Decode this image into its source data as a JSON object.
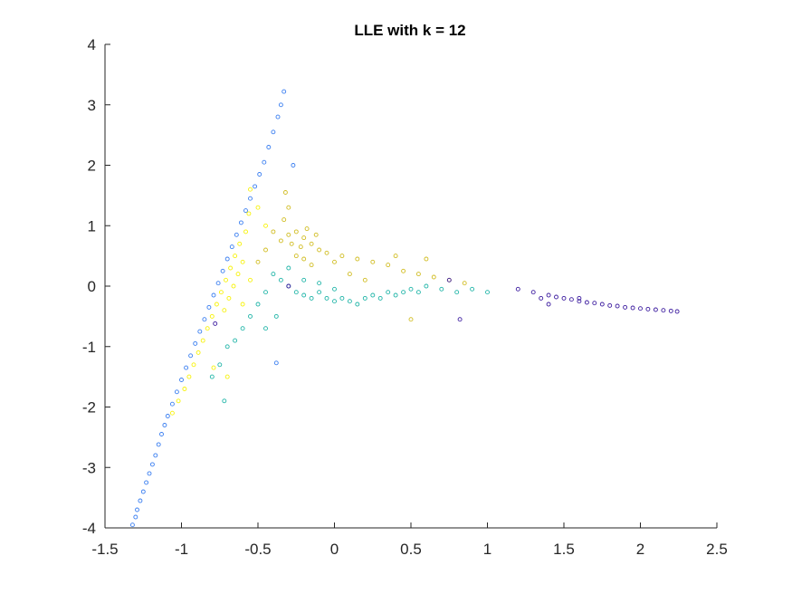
{
  "chart_data": {
    "type": "scatter",
    "title": "LLE with k = 12",
    "xlabel": "",
    "ylabel": "",
    "xlim": [
      -1.5,
      2.5
    ],
    "ylim": [
      -4,
      4
    ],
    "xticks": [
      "-1.5",
      "-1",
      "-0.5",
      "0",
      "0.5",
      "1",
      "1.5",
      "2",
      "2.5"
    ],
    "yticks": [
      "-4",
      "-3",
      "-2",
      "-1",
      "0",
      "1",
      "2",
      "3",
      "4"
    ],
    "grid": false,
    "legend": "none",
    "series": [
      {
        "color": "#3b7ff0",
        "marker": "circle",
        "points": [
          [
            -1.32,
            -3.95
          ],
          [
            -1.3,
            -3.82
          ],
          [
            -1.29,
            -3.7
          ],
          [
            -1.27,
            -3.55
          ],
          [
            -1.25,
            -3.4
          ],
          [
            -1.23,
            -3.25
          ],
          [
            -1.21,
            -3.1
          ],
          [
            -1.19,
            -2.95
          ],
          [
            -1.17,
            -2.8
          ],
          [
            -1.15,
            -2.62
          ],
          [
            -1.13,
            -2.45
          ],
          [
            -1.11,
            -2.3
          ],
          [
            -1.09,
            -2.15
          ],
          [
            -1.06,
            -1.95
          ],
          [
            -1.03,
            -1.75
          ],
          [
            -1.0,
            -1.55
          ],
          [
            -0.97,
            -1.35
          ],
          [
            -0.94,
            -1.15
          ],
          [
            -0.91,
            -0.95
          ],
          [
            -0.88,
            -0.75
          ],
          [
            -0.85,
            -0.55
          ],
          [
            -0.82,
            -0.35
          ],
          [
            -0.79,
            -0.15
          ],
          [
            -0.76,
            0.05
          ],
          [
            -0.73,
            0.25
          ],
          [
            -0.7,
            0.45
          ],
          [
            -0.67,
            0.65
          ],
          [
            -0.64,
            0.85
          ],
          [
            -0.61,
            1.05
          ],
          [
            -0.58,
            1.25
          ],
          [
            -0.55,
            1.45
          ],
          [
            -0.52,
            1.65
          ],
          [
            -0.49,
            1.85
          ],
          [
            -0.46,
            2.05
          ],
          [
            -0.43,
            2.3
          ],
          [
            -0.4,
            2.55
          ],
          [
            -0.37,
            2.8
          ],
          [
            -0.35,
            3.0
          ],
          [
            -0.33,
            3.22
          ],
          [
            -0.27,
            2.0
          ],
          [
            -0.38,
            -1.27
          ]
        ]
      },
      {
        "color": "#f7f20a",
        "marker": "circle",
        "points": [
          [
            -1.06,
            -2.1
          ],
          [
            -1.02,
            -1.9
          ],
          [
            -0.98,
            -1.7
          ],
          [
            -0.95,
            -1.5
          ],
          [
            -0.92,
            -1.3
          ],
          [
            -0.89,
            -1.1
          ],
          [
            -0.86,
            -0.9
          ],
          [
            -0.83,
            -0.7
          ],
          [
            -0.8,
            -0.5
          ],
          [
            -0.77,
            -0.3
          ],
          [
            -0.74,
            -0.1
          ],
          [
            -0.71,
            0.1
          ],
          [
            -0.68,
            0.3
          ],
          [
            -0.65,
            0.5
          ],
          [
            -0.62,
            0.7
          ],
          [
            -0.6,
            0.4
          ],
          [
            -0.63,
            0.2
          ],
          [
            -0.66,
            0.0
          ],
          [
            -0.69,
            -0.2
          ],
          [
            -0.72,
            -0.4
          ],
          [
            -0.58,
            0.9
          ],
          [
            -0.56,
            1.2
          ],
          [
            -0.55,
            1.6
          ],
          [
            -0.5,
            1.3
          ],
          [
            -0.45,
            1.0
          ],
          [
            -0.79,
            -1.35
          ],
          [
            -0.7,
            -1.5
          ],
          [
            -0.6,
            -0.3
          ],
          [
            -0.55,
            0.1
          ]
        ]
      },
      {
        "color": "#d1bd23",
        "marker": "circle",
        "points": [
          [
            -0.3,
            0.85
          ],
          [
            -0.25,
            0.9
          ],
          [
            -0.2,
            0.8
          ],
          [
            -0.15,
            0.7
          ],
          [
            -0.1,
            0.6
          ],
          [
            -0.22,
            0.65
          ],
          [
            -0.28,
            0.7
          ],
          [
            -0.18,
            0.95
          ],
          [
            -0.12,
            0.85
          ],
          [
            -0.05,
            0.55
          ],
          [
            -0.35,
            0.75
          ],
          [
            -0.4,
            0.9
          ],
          [
            -0.33,
            1.1
          ],
          [
            -0.3,
            1.3
          ],
          [
            -0.32,
            1.55
          ],
          [
            -0.45,
            0.6
          ],
          [
            -0.5,
            0.4
          ],
          [
            -0.2,
            0.45
          ],
          [
            0.0,
            0.4
          ],
          [
            0.05,
            0.5
          ],
          [
            0.15,
            0.45
          ],
          [
            0.25,
            0.4
          ],
          [
            0.35,
            0.35
          ],
          [
            0.45,
            0.25
          ],
          [
            0.55,
            0.2
          ],
          [
            0.65,
            0.15
          ],
          [
            0.75,
            0.1
          ],
          [
            0.85,
            0.05
          ],
          [
            0.6,
            0.45
          ],
          [
            0.4,
            0.5
          ],
          [
            -0.25,
            0.5
          ],
          [
            -0.15,
            0.35
          ],
          [
            0.1,
            0.2
          ],
          [
            0.2,
            0.1
          ],
          [
            0.5,
            -0.55
          ]
        ]
      },
      {
        "color": "#21b5a8",
        "marker": "circle",
        "points": [
          [
            -0.4,
            0.2
          ],
          [
            -0.35,
            0.1
          ],
          [
            -0.3,
            0.0
          ],
          [
            -0.25,
            -0.1
          ],
          [
            -0.2,
            -0.15
          ],
          [
            -0.15,
            -0.2
          ],
          [
            -0.1,
            -0.1
          ],
          [
            -0.05,
            -0.2
          ],
          [
            0.0,
            -0.25
          ],
          [
            0.05,
            -0.2
          ],
          [
            0.1,
            -0.25
          ],
          [
            0.15,
            -0.3
          ],
          [
            0.2,
            -0.2
          ],
          [
            0.25,
            -0.15
          ],
          [
            0.3,
            -0.2
          ],
          [
            0.35,
            -0.1
          ],
          [
            0.4,
            -0.15
          ],
          [
            0.45,
            -0.1
          ],
          [
            0.5,
            -0.05
          ],
          [
            0.55,
            -0.1
          ],
          [
            0.6,
            0.0
          ],
          [
            0.7,
            -0.05
          ],
          [
            0.8,
            -0.1
          ],
          [
            0.9,
            -0.05
          ],
          [
            1.0,
            -0.1
          ],
          [
            -0.45,
            -0.1
          ],
          [
            -0.5,
            -0.3
          ],
          [
            -0.55,
            -0.5
          ],
          [
            -0.6,
            -0.7
          ],
          [
            -0.65,
            -0.9
          ],
          [
            -0.7,
            -1.0
          ],
          [
            -0.75,
            -1.3
          ],
          [
            -0.8,
            -1.5
          ],
          [
            -0.72,
            -1.9
          ],
          [
            -0.3,
            0.3
          ],
          [
            -0.2,
            0.1
          ],
          [
            -0.1,
            0.05
          ],
          [
            0.0,
            -0.05
          ],
          [
            -0.38,
            -0.5
          ],
          [
            -0.45,
            -0.7
          ]
        ]
      },
      {
        "color": "#3e1ea0",
        "marker": "circle",
        "points": [
          [
            1.2,
            -0.05
          ],
          [
            1.3,
            -0.1
          ],
          [
            1.35,
            -0.2
          ],
          [
            1.4,
            -0.15
          ],
          [
            1.45,
            -0.18
          ],
          [
            1.5,
            -0.2
          ],
          [
            1.55,
            -0.22
          ],
          [
            1.6,
            -0.25
          ],
          [
            1.65,
            -0.27
          ],
          [
            1.7,
            -0.28
          ],
          [
            1.75,
            -0.3
          ],
          [
            1.8,
            -0.32
          ],
          [
            1.85,
            -0.33
          ],
          [
            1.9,
            -0.35
          ],
          [
            1.95,
            -0.36
          ],
          [
            2.0,
            -0.37
          ],
          [
            2.05,
            -0.38
          ],
          [
            2.1,
            -0.39
          ],
          [
            2.15,
            -0.4
          ],
          [
            2.2,
            -0.41
          ],
          [
            2.24,
            -0.42
          ],
          [
            1.4,
            -0.3
          ],
          [
            1.6,
            -0.2
          ],
          [
            0.82,
            -0.55
          ],
          [
            0.75,
            0.1
          ],
          [
            -0.3,
            0.0
          ],
          [
            -0.78,
            -0.62
          ]
        ]
      }
    ]
  }
}
